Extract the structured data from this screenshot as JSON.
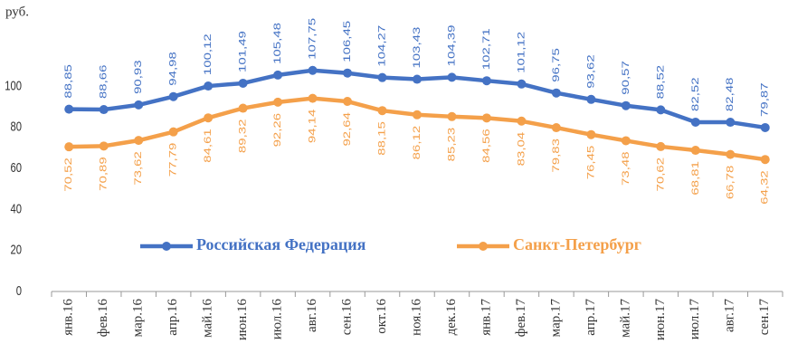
{
  "chart_data": {
    "type": "line",
    "y_label": "руб.",
    "categories": [
      "янв.16",
      "фев.16",
      "мар.16",
      "апр.16",
      "май.16",
      "июн.16",
      "июл.16",
      "авг.16",
      "сен.16",
      "окт.16",
      "ноя.16",
      "дек.16",
      "янв.17",
      "фев.17",
      "мар.17",
      "апр.17",
      "май.17",
      "июн.17",
      "июл.17",
      "авг.17",
      "сен.17"
    ],
    "series": [
      {
        "name": "Российская Федерация",
        "color": "#4472c4",
        "values": [
          88.85,
          88.66,
          90.93,
          94.98,
          100.12,
          101.49,
          105.48,
          107.75,
          106.45,
          104.27,
          103.43,
          104.39,
          102.71,
          101.12,
          96.75,
          93.62,
          90.57,
          88.52,
          82.52,
          82.48,
          79.87
        ],
        "value_labels": [
          "88,85",
          "88,66",
          "90,93",
          "94,98",
          "100,12",
          "101,49",
          "105,48",
          "107,75",
          "106,45",
          "104,27",
          "103,43",
          "104,39",
          "102,71",
          "101,12",
          "96,75",
          "93,62",
          "90,57",
          "88,52",
          "82,52",
          "82,48",
          "79,87"
        ]
      },
      {
        "name": "Санкт-Петербург",
        "color": "#f4a04a",
        "values": [
          70.52,
          70.89,
          73.62,
          77.79,
          84.61,
          89.32,
          92.26,
          94.14,
          92.64,
          88.15,
          86.12,
          85.23,
          84.56,
          83.04,
          79.83,
          76.45,
          73.48,
          70.62,
          68.81,
          66.78,
          64.32
        ],
        "value_labels": [
          "70,52",
          "70,89",
          "73,62",
          "77,79",
          "84,61",
          "89,32",
          "92,26",
          "94,14",
          "92,64",
          "88,15",
          "86,12",
          "85,23",
          "84,56",
          "83,04",
          "79,83",
          "76,45",
          "73,48",
          "70,62",
          "68,81",
          "66,78",
          "64,32"
        ]
      }
    ],
    "ylim": [
      0,
      120
    ],
    "yticks": [
      0,
      20,
      40,
      60,
      80,
      100
    ]
  }
}
